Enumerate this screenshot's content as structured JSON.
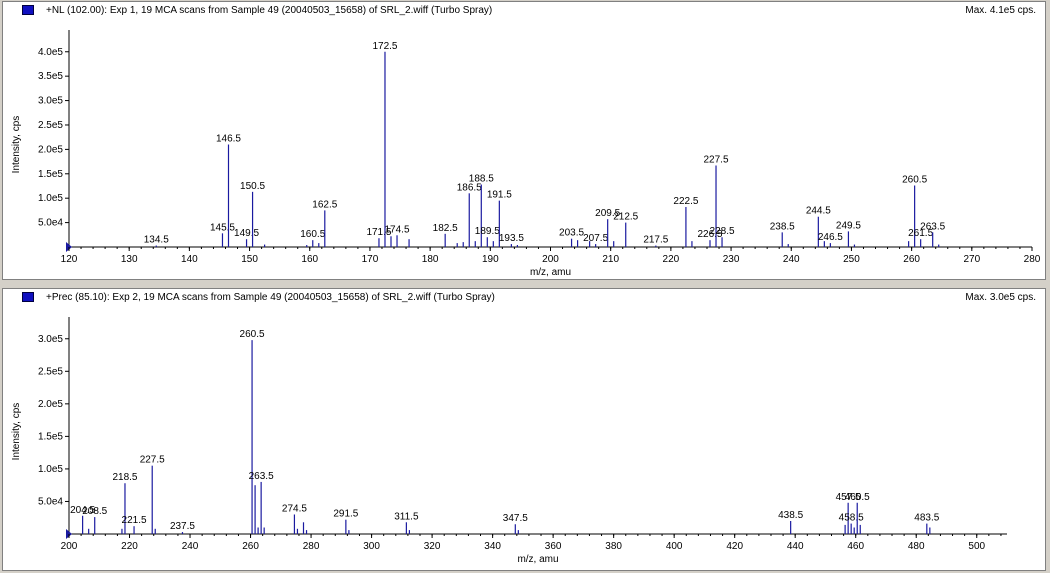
{
  "colors": {
    "peak": "#1a1aa0",
    "axis": "#000000",
    "flag": "#1010c0"
  },
  "chart_data": [
    {
      "type": "bar",
      "header_title": "+NL (102.00): Exp 1, 19 MCA scans from Sample 49 (20040503_15658) of SRL_2.wiff (Turbo Spray)",
      "max_intensity": "Max. 4.1e5 cps.",
      "xlabel": "m/z, amu",
      "ylabel": "Intensity, cps",
      "xlim": [
        120,
        280
      ],
      "ylim": [
        0,
        420000
      ],
      "x_ticks": [
        120,
        130,
        140,
        150,
        160,
        170,
        180,
        190,
        200,
        210,
        220,
        230,
        240,
        250,
        260,
        270,
        280
      ],
      "y_ticks": [
        {
          "value": 50000,
          "label": "5.0e4"
        },
        {
          "value": 100000,
          "label": "1.0e5"
        },
        {
          "value": 150000,
          "label": "1.5e5"
        },
        {
          "value": 200000,
          "label": "2.0e5"
        },
        {
          "value": 250000,
          "label": "2.5e5"
        },
        {
          "value": 300000,
          "label": "3.0e5"
        },
        {
          "value": 350000,
          "label": "3.5e5"
        },
        {
          "value": 400000,
          "label": "4.0e5"
        }
      ],
      "peaks": [
        {
          "x": 134.5,
          "y": 3000,
          "label": "134.5"
        },
        {
          "x": 145.5,
          "y": 28000,
          "label": "145.5"
        },
        {
          "x": 146.5,
          "y": 210000,
          "label": "146.5"
        },
        {
          "x": 149.5,
          "y": 16000,
          "label": "149.5"
        },
        {
          "x": 150.5,
          "y": 113000,
          "label": "150.5"
        },
        {
          "x": 152.5,
          "y": 5000
        },
        {
          "x": 159.5,
          "y": 4000
        },
        {
          "x": 160.5,
          "y": 14000,
          "label": "160.5"
        },
        {
          "x": 161.5,
          "y": 8000
        },
        {
          "x": 162.5,
          "y": 75000,
          "label": "162.5"
        },
        {
          "x": 171.5,
          "y": 18000,
          "label": "171.5"
        },
        {
          "x": 172.5,
          "y": 400000,
          "label": "172.5"
        },
        {
          "x": 173.5,
          "y": 22000
        },
        {
          "x": 174.5,
          "y": 24000,
          "label": "174.5"
        },
        {
          "x": 176.5,
          "y": 16000
        },
        {
          "x": 182.5,
          "y": 27000,
          "label": "182.5"
        },
        {
          "x": 184.5,
          "y": 8000
        },
        {
          "x": 185.5,
          "y": 10000
        },
        {
          "x": 186.5,
          "y": 110000,
          "label": "186.5"
        },
        {
          "x": 187.5,
          "y": 12000
        },
        {
          "x": 188.5,
          "y": 128000,
          "label": "188.5"
        },
        {
          "x": 189.5,
          "y": 20000,
          "label": "189.5"
        },
        {
          "x": 190.5,
          "y": 12000
        },
        {
          "x": 191.5,
          "y": 95000,
          "label": "191.5"
        },
        {
          "x": 193.5,
          "y": 6000,
          "label": "193.5"
        },
        {
          "x": 194.5,
          "y": 4000
        },
        {
          "x": 203.5,
          "y": 17000,
          "label": "203.5"
        },
        {
          "x": 204.5,
          "y": 14000
        },
        {
          "x": 206.5,
          "y": 12000
        },
        {
          "x": 207.5,
          "y": 6000,
          "label": "207.5"
        },
        {
          "x": 209.5,
          "y": 57000,
          "label": "209.5"
        },
        {
          "x": 210.5,
          "y": 12000
        },
        {
          "x": 212.5,
          "y": 50000,
          "label": "212.5"
        },
        {
          "x": 217.5,
          "y": 3000,
          "label": "217.5"
        },
        {
          "x": 222.5,
          "y": 82000,
          "label": "222.5"
        },
        {
          "x": 223.5,
          "y": 12000
        },
        {
          "x": 226.5,
          "y": 14000,
          "label": "226.5"
        },
        {
          "x": 227.5,
          "y": 167000,
          "label": "227.5"
        },
        {
          "x": 228.5,
          "y": 20000,
          "label": "228.5"
        },
        {
          "x": 238.5,
          "y": 30000,
          "label": "238.5"
        },
        {
          "x": 239.5,
          "y": 6000
        },
        {
          "x": 244.5,
          "y": 62000,
          "label": "244.5"
        },
        {
          "x": 245.5,
          "y": 12000
        },
        {
          "x": 246.5,
          "y": 8000,
          "label": "246.5"
        },
        {
          "x": 249.5,
          "y": 32000,
          "label": "249.5"
        },
        {
          "x": 250.5,
          "y": 5000
        },
        {
          "x": 259.5,
          "y": 12000
        },
        {
          "x": 260.5,
          "y": 126000,
          "label": "260.5"
        },
        {
          "x": 261.5,
          "y": 16000,
          "label": "261.5"
        },
        {
          "x": 263.5,
          "y": 30000,
          "label": "263.5"
        },
        {
          "x": 264.5,
          "y": 5000
        }
      ]
    },
    {
      "type": "bar",
      "header_title": "+Prec (85.10): Exp 2, 19 MCA scans from Sample 49 (20040503_15658) of SRL_2.wiff (Turbo Spray)",
      "max_intensity": "Max. 3.0e5 cps.",
      "xlabel": "m/z, amu",
      "ylabel": "Intensity, cps",
      "xlim": [
        200,
        510
      ],
      "ylim": [
        0,
        315000
      ],
      "x_ticks": [
        200,
        220,
        240,
        260,
        280,
        300,
        320,
        340,
        360,
        380,
        400,
        420,
        440,
        460,
        480,
        500
      ],
      "y_ticks": [
        {
          "value": 50000,
          "label": "5.0e4"
        },
        {
          "value": 100000,
          "label": "1.0e5"
        },
        {
          "value": 150000,
          "label": "1.5e5"
        },
        {
          "value": 200000,
          "label": "2.0e5"
        },
        {
          "value": 250000,
          "label": "2.5e5"
        },
        {
          "value": 300000,
          "label": "3.0e5"
        }
      ],
      "peaks": [
        {
          "x": 204.5,
          "y": 28000,
          "label": "204.5"
        },
        {
          "x": 206.5,
          "y": 8000
        },
        {
          "x": 208.5,
          "y": 26000,
          "label": "208.5"
        },
        {
          "x": 217.5,
          "y": 8000
        },
        {
          "x": 218.5,
          "y": 78000,
          "label": "218.5"
        },
        {
          "x": 221.5,
          "y": 12000,
          "label": "221.5"
        },
        {
          "x": 227.5,
          "y": 105000,
          "label": "227.5"
        },
        {
          "x": 228.5,
          "y": 8000
        },
        {
          "x": 237.5,
          "y": 3000,
          "label": "237.5"
        },
        {
          "x": 260.5,
          "y": 298000,
          "label": "260.5"
        },
        {
          "x": 261.5,
          "y": 75000
        },
        {
          "x": 262.5,
          "y": 10000
        },
        {
          "x": 263.5,
          "y": 80000,
          "label": "263.5"
        },
        {
          "x": 264.5,
          "y": 10000
        },
        {
          "x": 274.5,
          "y": 30000,
          "label": "274.5"
        },
        {
          "x": 275.5,
          "y": 8000
        },
        {
          "x": 277.5,
          "y": 18000
        },
        {
          "x": 278.5,
          "y": 6000
        },
        {
          "x": 291.5,
          "y": 22000,
          "label": "291.5"
        },
        {
          "x": 292.5,
          "y": 6000
        },
        {
          "x": 311.5,
          "y": 18000,
          "label": "311.5"
        },
        {
          "x": 312.5,
          "y": 6000
        },
        {
          "x": 347.5,
          "y": 15000,
          "label": "347.5"
        },
        {
          "x": 348.5,
          "y": 6000
        },
        {
          "x": 438.5,
          "y": 20000,
          "label": "438.5"
        },
        {
          "x": 456.5,
          "y": 14000
        },
        {
          "x": 457.5,
          "y": 48000,
          "label": "457.5"
        },
        {
          "x": 458.5,
          "y": 16000,
          "label": "458.5"
        },
        {
          "x": 459.5,
          "y": 10000
        },
        {
          "x": 460.5,
          "y": 48000,
          "label": "460.5"
        },
        {
          "x": 461.5,
          "y": 14000
        },
        {
          "x": 483.5,
          "y": 16000,
          "label": "483.5"
        },
        {
          "x": 484.5,
          "y": 10000
        }
      ]
    }
  ]
}
